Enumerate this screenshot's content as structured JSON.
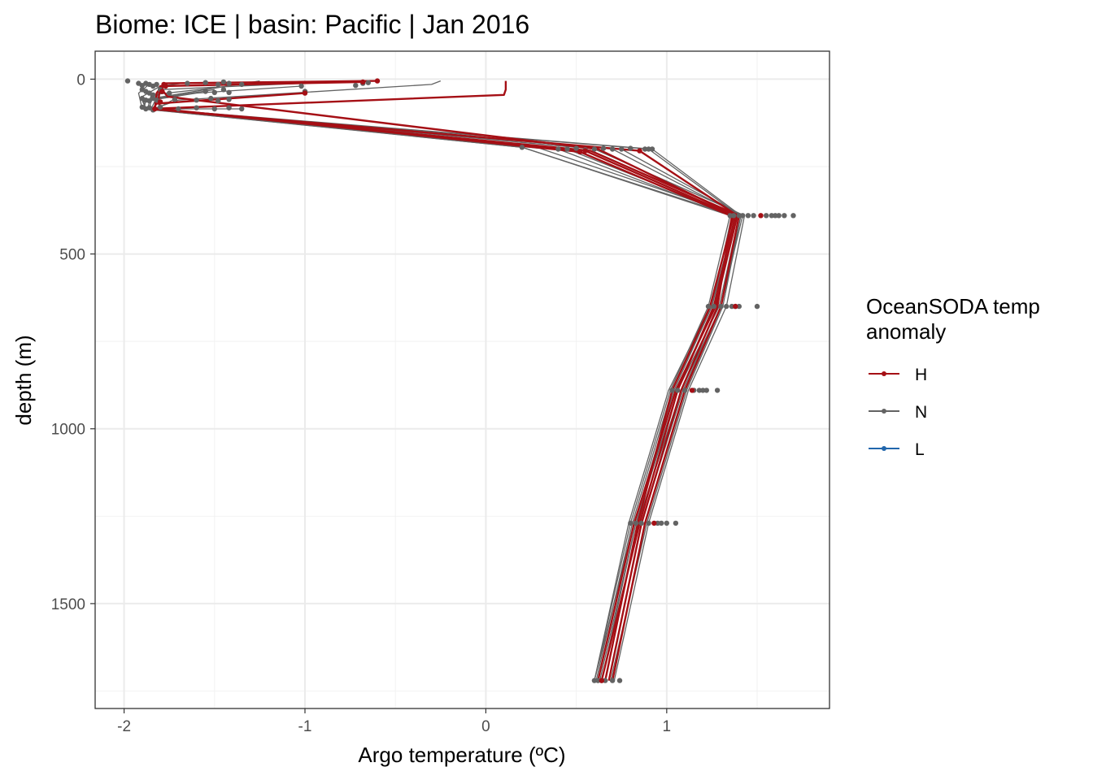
{
  "chart_data": {
    "type": "line",
    "title": "Biome: ICE | basin: Pacific  | Jan 2016",
    "xlabel": "Argo temperature (ºC)",
    "ylabel": "depth (m)",
    "xlim": [
      -2.16,
      1.9
    ],
    "ylim": [
      1800,
      -80
    ],
    "y_reversed": true,
    "x_ticks": [
      -2,
      -1,
      0,
      1
    ],
    "x_tick_labels": [
      "-2",
      "-1",
      "0",
      "1"
    ],
    "y_ticks": [
      0,
      500,
      1000,
      1500
    ],
    "y_tick_labels": [
      "0",
      "500",
      "1000",
      "1500"
    ],
    "grid": true,
    "legend": {
      "position": "right",
      "title_lines": [
        "OceanSODA temp",
        "anomaly"
      ],
      "entries": [
        {
          "label": "H",
          "color": "#a50f15"
        },
        {
          "label": "N",
          "color": "#636363"
        },
        {
          "label": "L",
          "color": "#2166ac"
        }
      ]
    },
    "series": [
      {
        "name": "H",
        "color": "#a50f15",
        "profiles": [
          [
            {
              "x": 0.11,
              "y": 5
            },
            {
              "x": 0.11,
              "y": 30
            },
            {
              "x": 0.1,
              "y": 45
            },
            {
              "x": -1.85,
              "y": 85
            },
            {
              "x": 0.85,
              "y": 205
            },
            {
              "x": 1.39,
              "y": 390
            },
            {
              "x": 1.27,
              "y": 650
            },
            {
              "x": 1.05,
              "y": 890
            },
            {
              "x": 0.82,
              "y": 1270
            },
            {
              "x": 0.62,
              "y": 1720
            }
          ],
          [
            {
              "x": -0.6,
              "y": 5
            },
            {
              "x": -1.78,
              "y": 12
            },
            {
              "x": -1.82,
              "y": 40
            },
            {
              "x": -1.83,
              "y": 85
            },
            {
              "x": 0.55,
              "y": 205
            },
            {
              "x": 1.37,
              "y": 390
            },
            {
              "x": 1.24,
              "y": 650
            },
            {
              "x": 1.03,
              "y": 890
            },
            {
              "x": 0.84,
              "y": 1270
            },
            {
              "x": 0.66,
              "y": 1720
            }
          ],
          [
            {
              "x": -0.68,
              "y": 8
            },
            {
              "x": -1.8,
              "y": 20
            },
            {
              "x": -1.81,
              "y": 60
            },
            {
              "x": -1.8,
              "y": 85
            },
            {
              "x": 0.52,
              "y": 208
            },
            {
              "x": 1.36,
              "y": 392
            },
            {
              "x": 1.28,
              "y": 652
            },
            {
              "x": 1.08,
              "y": 890
            },
            {
              "x": 0.86,
              "y": 1272
            },
            {
              "x": 0.68,
              "y": 1720
            }
          ],
          [
            {
              "x": -1.78,
              "y": 15
            },
            {
              "x": -1.79,
              "y": 30
            },
            {
              "x": -1.76,
              "y": 50
            },
            {
              "x": 0.62,
              "y": 200
            },
            {
              "x": 1.38,
              "y": 390
            },
            {
              "x": 1.26,
              "y": 650
            },
            {
              "x": 1.06,
              "y": 890
            },
            {
              "x": 0.85,
              "y": 1270
            },
            {
              "x": 0.64,
              "y": 1720
            }
          ],
          [
            {
              "x": -1.0,
              "y": 40
            },
            {
              "x": -1.82,
              "y": 70
            },
            {
              "x": -1.84,
              "y": 85
            },
            {
              "x": 0.58,
              "y": 205
            },
            {
              "x": 1.4,
              "y": 390
            },
            {
              "x": 1.3,
              "y": 650
            },
            {
              "x": 1.1,
              "y": 890
            },
            {
              "x": 0.88,
              "y": 1270
            },
            {
              "x": 0.7,
              "y": 1720
            }
          ]
        ]
      },
      {
        "name": "N",
        "color": "#636363",
        "profiles": [
          [
            {
              "x": -1.25,
              "y": 5
            },
            {
              "x": -1.55,
              "y": 30
            },
            {
              "x": -1.9,
              "y": 60
            },
            {
              "x": -1.88,
              "y": 85
            },
            {
              "x": 0.75,
              "y": 200
            },
            {
              "x": 1.42,
              "y": 390
            },
            {
              "x": 1.3,
              "y": 650
            },
            {
              "x": 1.08,
              "y": 890
            },
            {
              "x": 0.84,
              "y": 1270
            },
            {
              "x": 0.66,
              "y": 1720
            }
          ],
          [
            {
              "x": -1.0,
              "y": 5
            },
            {
              "x": -1.02,
              "y": 20
            },
            {
              "x": -1.6,
              "y": 40
            },
            {
              "x": -1.85,
              "y": 60
            },
            {
              "x": -1.86,
              "y": 85
            },
            {
              "x": 0.9,
              "y": 200
            },
            {
              "x": 1.4,
              "y": 390
            },
            {
              "x": 1.29,
              "y": 650
            },
            {
              "x": 1.06,
              "y": 890
            },
            {
              "x": 0.83,
              "y": 1270
            },
            {
              "x": 0.63,
              "y": 1720
            }
          ],
          [
            {
              "x": -0.25,
              "y": 5
            },
            {
              "x": -0.3,
              "y": 15
            },
            {
              "x": -1.7,
              "y": 60
            },
            {
              "x": -1.84,
              "y": 85
            },
            {
              "x": 0.92,
              "y": 200
            },
            {
              "x": 1.41,
              "y": 390
            },
            {
              "x": 1.3,
              "y": 650
            },
            {
              "x": 1.09,
              "y": 890
            },
            {
              "x": 0.86,
              "y": 1270
            },
            {
              "x": 0.68,
              "y": 1720
            }
          ],
          [
            {
              "x": -0.72,
              "y": 5
            },
            {
              "x": -1.8,
              "y": 30
            },
            {
              "x": -1.85,
              "y": 85
            },
            {
              "x": 0.45,
              "y": 200
            },
            {
              "x": 1.38,
              "y": 390
            },
            {
              "x": 1.25,
              "y": 650
            },
            {
              "x": 1.04,
              "y": 890
            },
            {
              "x": 0.82,
              "y": 1270
            },
            {
              "x": 0.6,
              "y": 1720
            }
          ],
          [
            {
              "x": -1.65,
              "y": 10
            },
            {
              "x": -1.8,
              "y": 20
            },
            {
              "x": -1.9,
              "y": 50
            },
            {
              "x": -1.88,
              "y": 85
            },
            {
              "x": 0.4,
              "y": 200
            },
            {
              "x": 1.36,
              "y": 390
            },
            {
              "x": 1.25,
              "y": 650
            },
            {
              "x": 1.03,
              "y": 890
            },
            {
              "x": 0.81,
              "y": 1270
            },
            {
              "x": 0.61,
              "y": 1720
            }
          ],
          [
            {
              "x": -1.42,
              "y": 20
            },
            {
              "x": -1.85,
              "y": 45
            },
            {
              "x": -1.87,
              "y": 85
            },
            {
              "x": 0.2,
              "y": 195
            },
            {
              "x": 1.35,
              "y": 390
            },
            {
              "x": 1.23,
              "y": 650
            },
            {
              "x": 1.02,
              "y": 890
            },
            {
              "x": 0.8,
              "y": 1270
            },
            {
              "x": 0.6,
              "y": 1720
            }
          ],
          [
            {
              "x": -1.5,
              "y": 30
            },
            {
              "x": -1.88,
              "y": 60
            },
            {
              "x": -1.89,
              "y": 85
            },
            {
              "x": 0.2,
              "y": 195
            },
            {
              "x": 1.37,
              "y": 390
            },
            {
              "x": 1.24,
              "y": 650
            },
            {
              "x": 1.01,
              "y": 890
            },
            {
              "x": 0.79,
              "y": 1270
            },
            {
              "x": 0.6,
              "y": 1720
            }
          ],
          [
            {
              "x": -1.85,
              "y": 10
            },
            {
              "x": -1.92,
              "y": 40
            },
            {
              "x": -1.9,
              "y": 85
            },
            {
              "x": 0.3,
              "y": 198
            },
            {
              "x": 1.39,
              "y": 390
            },
            {
              "x": 1.27,
              "y": 650
            },
            {
              "x": 1.05,
              "y": 890
            },
            {
              "x": 0.83,
              "y": 1270
            },
            {
              "x": 0.64,
              "y": 1720
            }
          ],
          [
            {
              "x": -1.7,
              "y": 50
            },
            {
              "x": -1.75,
              "y": 65
            },
            {
              "x": -1.82,
              "y": 85
            },
            {
              "x": 0.6,
              "y": 200
            },
            {
              "x": 1.43,
              "y": 390
            },
            {
              "x": 1.33,
              "y": 650
            },
            {
              "x": 1.12,
              "y": 890
            },
            {
              "x": 0.9,
              "y": 1270
            },
            {
              "x": 0.71,
              "y": 1720
            }
          ],
          [
            {
              "x": -1.35,
              "y": 85
            },
            {
              "x": -1.86,
              "y": 85
            },
            {
              "x": 0.7,
              "y": 200
            },
            {
              "x": 1.41,
              "y": 390
            },
            {
              "x": 1.31,
              "y": 650
            },
            {
              "x": 1.11,
              "y": 890
            },
            {
              "x": 0.89,
              "y": 1270
            },
            {
              "x": 0.69,
              "y": 1720
            }
          ]
        ]
      },
      {
        "name": "L",
        "color": "#2166ac",
        "profiles": []
      }
    ],
    "points": {
      "N": [
        {
          "x": -1.98,
          "y": 5
        },
        {
          "x": -1.92,
          "y": 12
        },
        {
          "x": -1.9,
          "y": 18
        },
        {
          "x": -1.88,
          "y": 12
        },
        {
          "x": -1.86,
          "y": 15
        },
        {
          "x": -1.84,
          "y": 20
        },
        {
          "x": -1.82,
          "y": 15
        },
        {
          "x": -1.65,
          "y": 12
        },
        {
          "x": -1.55,
          "y": 10
        },
        {
          "x": -1.48,
          "y": 15
        },
        {
          "x": -1.45,
          "y": 8
        },
        {
          "x": -1.42,
          "y": 12
        },
        {
          "x": -1.35,
          "y": 15
        },
        {
          "x": -1.02,
          "y": 20
        },
        {
          "x": -1.0,
          "y": 35
        },
        {
          "x": -0.72,
          "y": 18
        },
        {
          "x": -0.68,
          "y": 12
        },
        {
          "x": -0.65,
          "y": 10
        },
        {
          "x": -1.9,
          "y": 30
        },
        {
          "x": -1.88,
          "y": 35
        },
        {
          "x": -1.86,
          "y": 40
        },
        {
          "x": -1.84,
          "y": 45
        },
        {
          "x": -1.8,
          "y": 30
        },
        {
          "x": -1.75,
          "y": 40
        },
        {
          "x": -1.55,
          "y": 35
        },
        {
          "x": -1.5,
          "y": 38
        },
        {
          "x": -1.45,
          "y": 30
        },
        {
          "x": -1.42,
          "y": 38
        },
        {
          "x": -1.9,
          "y": 55
        },
        {
          "x": -1.88,
          "y": 60
        },
        {
          "x": -1.86,
          "y": 62
        },
        {
          "x": -1.84,
          "y": 55
        },
        {
          "x": -1.82,
          "y": 60
        },
        {
          "x": -1.72,
          "y": 58
        },
        {
          "x": -1.6,
          "y": 60
        },
        {
          "x": -1.52,
          "y": 55
        },
        {
          "x": -1.48,
          "y": 62
        },
        {
          "x": -1.42,
          "y": 58
        },
        {
          "x": -1.9,
          "y": 80
        },
        {
          "x": -1.88,
          "y": 85
        },
        {
          "x": -1.86,
          "y": 82
        },
        {
          "x": -1.84,
          "y": 88
        },
        {
          "x": -1.8,
          "y": 80
        },
        {
          "x": -1.7,
          "y": 85
        },
        {
          "x": -1.6,
          "y": 82
        },
        {
          "x": -1.5,
          "y": 85
        },
        {
          "x": -1.42,
          "y": 82
        },
        {
          "x": -1.35,
          "y": 85
        },
        {
          "x": 0.2,
          "y": 195
        },
        {
          "x": 0.4,
          "y": 200
        },
        {
          "x": 0.45,
          "y": 200
        },
        {
          "x": 0.5,
          "y": 198
        },
        {
          "x": 0.55,
          "y": 202
        },
        {
          "x": 0.6,
          "y": 200
        },
        {
          "x": 0.65,
          "y": 198
        },
        {
          "x": 0.7,
          "y": 200
        },
        {
          "x": 0.75,
          "y": 200
        },
        {
          "x": 0.8,
          "y": 198
        },
        {
          "x": 0.88,
          "y": 200
        },
        {
          "x": 0.9,
          "y": 200
        },
        {
          "x": 0.92,
          "y": 200
        },
        {
          "x": 1.35,
          "y": 390
        },
        {
          "x": 1.37,
          "y": 390
        },
        {
          "x": 1.4,
          "y": 390
        },
        {
          "x": 1.42,
          "y": 390
        },
        {
          "x": 1.45,
          "y": 390
        },
        {
          "x": 1.48,
          "y": 390
        },
        {
          "x": 1.55,
          "y": 390
        },
        {
          "x": 1.58,
          "y": 390
        },
        {
          "x": 1.6,
          "y": 390
        },
        {
          "x": 1.62,
          "y": 390
        },
        {
          "x": 1.65,
          "y": 390
        },
        {
          "x": 1.7,
          "y": 390
        },
        {
          "x": 1.23,
          "y": 650
        },
        {
          "x": 1.26,
          "y": 650
        },
        {
          "x": 1.3,
          "y": 650
        },
        {
          "x": 1.33,
          "y": 650
        },
        {
          "x": 1.36,
          "y": 650
        },
        {
          "x": 1.38,
          "y": 650
        },
        {
          "x": 1.4,
          "y": 650
        },
        {
          "x": 1.5,
          "y": 650
        },
        {
          "x": 1.03,
          "y": 890
        },
        {
          "x": 1.06,
          "y": 890
        },
        {
          "x": 1.1,
          "y": 890
        },
        {
          "x": 1.15,
          "y": 890
        },
        {
          "x": 1.18,
          "y": 890
        },
        {
          "x": 1.2,
          "y": 890
        },
        {
          "x": 1.22,
          "y": 890
        },
        {
          "x": 1.28,
          "y": 890
        },
        {
          "x": 0.8,
          "y": 1270
        },
        {
          "x": 0.83,
          "y": 1270
        },
        {
          "x": 0.86,
          "y": 1270
        },
        {
          "x": 0.9,
          "y": 1270
        },
        {
          "x": 0.95,
          "y": 1270
        },
        {
          "x": 0.97,
          "y": 1270
        },
        {
          "x": 1.0,
          "y": 1270
        },
        {
          "x": 1.05,
          "y": 1270
        },
        {
          "x": 0.6,
          "y": 1720
        },
        {
          "x": 0.62,
          "y": 1720
        },
        {
          "x": 0.64,
          "y": 1720
        },
        {
          "x": 0.66,
          "y": 1720
        },
        {
          "x": 0.7,
          "y": 1720
        },
        {
          "x": 0.74,
          "y": 1720
        }
      ],
      "H": [
        {
          "x": -0.6,
          "y": 5
        },
        {
          "x": -0.68,
          "y": 8
        },
        {
          "x": -1.78,
          "y": 15
        },
        {
          "x": -1.0,
          "y": 40
        },
        {
          "x": -1.77,
          "y": 20
        },
        {
          "x": -1.79,
          "y": 35
        },
        {
          "x": -1.8,
          "y": 65
        },
        {
          "x": -1.83,
          "y": 85
        },
        {
          "x": 0.85,
          "y": 205
        },
        {
          "x": 0.55,
          "y": 205
        },
        {
          "x": 0.52,
          "y": 208
        },
        {
          "x": 1.52,
          "y": 390
        },
        {
          "x": 1.38,
          "y": 650
        },
        {
          "x": 1.14,
          "y": 890
        },
        {
          "x": 0.93,
          "y": 1270
        },
        {
          "x": 0.64,
          "y": 1720
        }
      ]
    }
  }
}
